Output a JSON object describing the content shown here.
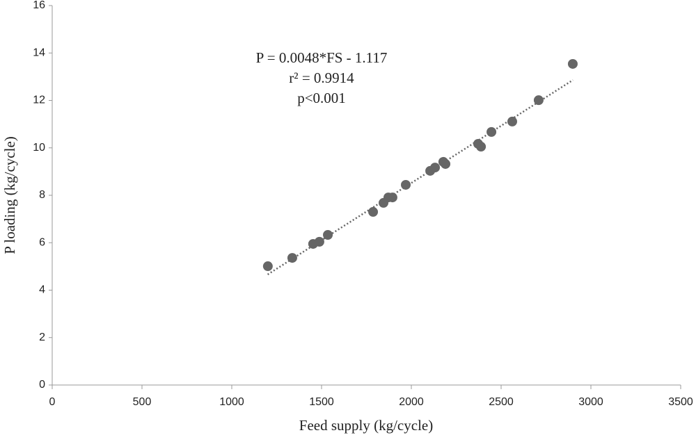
{
  "chart_data": {
    "type": "scatter",
    "x_label": "Feed supply (kg/cycle)",
    "y_label": "P loading (kg/cycle)",
    "annotations": [
      "P = 0.0048*FS - 1.117",
      "r² = 0.9914",
      "p<0.001"
    ],
    "series": [
      {
        "name": "P loading",
        "color": "#666666",
        "x": [
          1201,
          1337,
          1453,
          1488,
          1535,
          1787,
          1845,
          1872,
          1895,
          1969,
          2105,
          2132,
          2178,
          2190,
          2372,
          2388,
          2446,
          2562,
          2709,
          2899
        ],
        "values": [
          5.01,
          5.36,
          5.95,
          6.04,
          6.33,
          7.3,
          7.68,
          7.91,
          7.91,
          8.44,
          9.03,
          9.17,
          9.41,
          9.32,
          10.17,
          10.05,
          10.67,
          11.11,
          12.01,
          13.54
        ]
      }
    ],
    "trendline": {
      "color": "#666666",
      "x": [
        1200,
        2900
      ],
      "values": [
        4.66,
        12.86
      ]
    },
    "xlim": [
      0,
      3500
    ],
    "xticks": [
      0,
      500,
      1000,
      1500,
      2000,
      2500,
      3000,
      3500
    ],
    "ylim": [
      0,
      16
    ],
    "yticks": [
      0,
      2,
      4,
      6,
      8,
      10,
      12,
      14,
      16
    ],
    "grid": false
  }
}
